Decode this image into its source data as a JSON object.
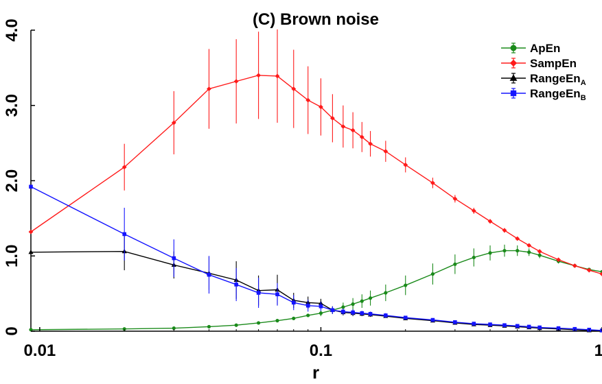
{
  "chart_data": {
    "type": "line",
    "title": "(C) Brown noise",
    "xlabel": "r",
    "ylabel": "",
    "xscale": "log",
    "xlim": [
      0.0093,
      1.0
    ],
    "ylim": [
      0,
      4.0
    ],
    "xticks": [
      {
        "value": 0.01,
        "label": "0.01"
      },
      {
        "value": 0.1,
        "label": "0.1"
      },
      {
        "value": 1.0,
        "label": "1"
      }
    ],
    "yticks": [
      {
        "value": 0,
        "label": "0"
      },
      {
        "value": 1.0,
        "label": "1.0"
      },
      {
        "value": 2.0,
        "label": "2.0"
      },
      {
        "value": 3.0,
        "label": "3.0"
      },
      {
        "value": 4.0,
        "label": "4.0"
      }
    ],
    "grid": false,
    "legend_position": "top-right",
    "series": [
      {
        "name": "ApEn",
        "legend_base": "ApEn",
        "legend_sub": "",
        "color": "#1a8a1a",
        "marker": "circle",
        "x": [
          0.0093,
          0.02,
          0.03,
          0.04,
          0.05,
          0.06,
          0.07,
          0.08,
          0.09,
          0.1,
          0.11,
          0.12,
          0.13,
          0.14,
          0.15,
          0.17,
          0.2,
          0.25,
          0.3,
          0.35,
          0.4,
          0.45,
          0.5,
          0.55,
          0.6,
          0.7,
          0.8,
          0.9,
          1.0
        ],
        "y": [
          0.02,
          0.03,
          0.04,
          0.06,
          0.08,
          0.11,
          0.14,
          0.17,
          0.21,
          0.24,
          0.28,
          0.32,
          0.36,
          0.4,
          0.44,
          0.51,
          0.61,
          0.76,
          0.89,
          0.98,
          1.04,
          1.07,
          1.07,
          1.05,
          1.01,
          0.93,
          0.87,
          0.82,
          0.79
        ],
        "err": [
          0.0,
          0.0,
          0.0,
          0.0,
          0.0,
          0.0,
          0.0,
          0.0,
          0.02,
          0.04,
          0.05,
          0.06,
          0.08,
          0.09,
          0.1,
          0.11,
          0.13,
          0.14,
          0.13,
          0.12,
          0.1,
          0.08,
          0.07,
          0.05,
          0.04,
          0.03,
          0.02,
          0.02,
          0.02
        ]
      },
      {
        "name": "SampEn",
        "legend_base": "SampEn",
        "legend_sub": "",
        "color": "#ff1a1a",
        "marker": "diamond",
        "x": [
          0.0093,
          0.02,
          0.03,
          0.04,
          0.05,
          0.06,
          0.07,
          0.08,
          0.09,
          0.1,
          0.11,
          0.12,
          0.13,
          0.14,
          0.15,
          0.17,
          0.2,
          0.25,
          0.3,
          0.35,
          0.4,
          0.45,
          0.5,
          0.55,
          0.6,
          0.7,
          0.8,
          0.9,
          1.0
        ],
        "y": [
          1.32,
          2.18,
          2.77,
          3.22,
          3.32,
          3.4,
          3.39,
          3.22,
          3.07,
          2.98,
          2.83,
          2.72,
          2.67,
          2.58,
          2.49,
          2.39,
          2.21,
          1.97,
          1.76,
          1.6,
          1.46,
          1.34,
          1.23,
          1.14,
          1.06,
          0.95,
          0.87,
          0.81,
          0.76
        ],
        "err": [
          0.0,
          0.31,
          0.42,
          0.53,
          0.56,
          0.58,
          0.62,
          0.52,
          0.45,
          0.38,
          0.32,
          0.28,
          0.24,
          0.2,
          0.17,
          0.14,
          0.1,
          0.07,
          0.05,
          0.04,
          0.03,
          0.03,
          0.02,
          0.02,
          0.02,
          0.02,
          0.02,
          0.02,
          0.02
        ]
      },
      {
        "name": "RangeEn_A",
        "legend_base": "RangeEn",
        "legend_sub": "A",
        "color": "#000000",
        "marker": "triangle",
        "x": [
          0.0093,
          0.02,
          0.03,
          0.04,
          0.05,
          0.06,
          0.07,
          0.08,
          0.09,
          0.1,
          0.11,
          0.12,
          0.13,
          0.14,
          0.15,
          0.17,
          0.2,
          0.25,
          0.3,
          0.35,
          0.4,
          0.45,
          0.5,
          0.55,
          0.6,
          0.7,
          0.8,
          0.9,
          1.0
        ],
        "y": [
          1.05,
          1.06,
          0.88,
          0.77,
          0.68,
          0.54,
          0.55,
          0.41,
          0.38,
          0.37,
          0.28,
          0.25,
          0.24,
          0.23,
          0.22,
          0.2,
          0.17,
          0.14,
          0.11,
          0.09,
          0.08,
          0.07,
          0.06,
          0.05,
          0.04,
          0.03,
          0.02,
          0.01,
          0.01
        ],
        "err": [
          0.0,
          0.25,
          0.18,
          0.22,
          0.25,
          0.2,
          0.2,
          0.1,
          0.08,
          0.06,
          0.05,
          0.04,
          0.04,
          0.03,
          0.03,
          0.02,
          0.02,
          0.02,
          0.02,
          0.02,
          0.02,
          0.02,
          0.01,
          0.01,
          0.01,
          0.01,
          0.01,
          0.01,
          0.0
        ]
      },
      {
        "name": "RangeEn_B",
        "legend_base": "RangeEn",
        "legend_sub": "B",
        "color": "#1414ff",
        "marker": "square",
        "x": [
          0.0093,
          0.02,
          0.03,
          0.04,
          0.05,
          0.06,
          0.07,
          0.08,
          0.09,
          0.1,
          0.11,
          0.12,
          0.13,
          0.14,
          0.15,
          0.17,
          0.2,
          0.25,
          0.3,
          0.35,
          0.4,
          0.45,
          0.5,
          0.55,
          0.6,
          0.7,
          0.8,
          0.9,
          1.0
        ],
        "y": [
          1.92,
          1.29,
          0.97,
          0.75,
          0.62,
          0.51,
          0.49,
          0.38,
          0.34,
          0.33,
          0.28,
          0.26,
          0.25,
          0.24,
          0.23,
          0.21,
          0.18,
          0.15,
          0.12,
          0.1,
          0.09,
          0.08,
          0.07,
          0.06,
          0.05,
          0.04,
          0.03,
          0.02,
          0.01
        ],
        "err": [
          0.0,
          0.35,
          0.25,
          0.25,
          0.22,
          0.2,
          0.15,
          0.1,
          0.08,
          0.06,
          0.05,
          0.04,
          0.04,
          0.03,
          0.03,
          0.03,
          0.02,
          0.02,
          0.02,
          0.02,
          0.02,
          0.01,
          0.01,
          0.01,
          0.01,
          0.01,
          0.01,
          0.01,
          0.0
        ]
      }
    ]
  }
}
